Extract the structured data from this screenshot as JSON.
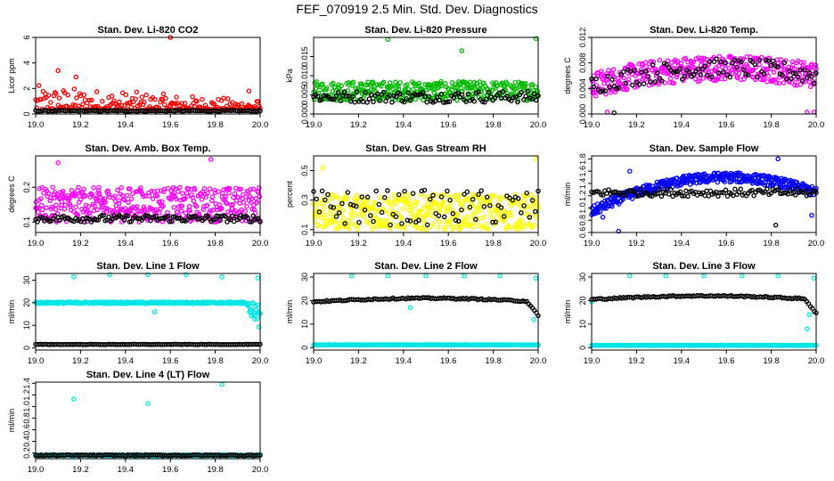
{
  "figure": {
    "title": "FEF_070919  2.5 Min. Std. Dev. Diagnostics"
  },
  "chart_data": [
    {
      "type": "scatter",
      "title": "Stan. Dev. Li-820 CO2",
      "xlabel": "",
      "ylabel": "Licor ppm",
      "xlim": [
        19.0,
        20.0
      ],
      "ylim": [
        0,
        6
      ],
      "xticks": [
        19.0,
        19.2,
        19.4,
        19.6,
        19.8,
        20.0
      ],
      "yticks": [
        0,
        2,
        4,
        6
      ],
      "series": [
        {
          "name": "primary",
          "color": "#ff0000",
          "pattern": "decay",
          "base": 0.35,
          "spread": 1.2,
          "count": 210,
          "outliers": [
            [
              19.6,
              6.0
            ],
            [
              19.1,
              3.4
            ],
            [
              19.18,
              2.9
            ],
            [
              19.95,
              1.8
            ]
          ]
        },
        {
          "name": "black",
          "color": "#000000",
          "pattern": "flat",
          "base": 0.25,
          "spread": 0.04,
          "count": 130,
          "outliers": []
        }
      ]
    },
    {
      "type": "scatter",
      "title": "Stan. Dev. Li-820 Pressure",
      "xlabel": "",
      "ylabel": "kPa",
      "xlim": [
        19.0,
        20.0
      ],
      "ylim": [
        0,
        0.02
      ],
      "xticks": [
        19.0,
        19.2,
        19.4,
        19.6,
        19.8,
        20.0
      ],
      "yticks": [
        0.0,
        0.005,
        0.01,
        0.015
      ],
      "series": [
        {
          "name": "primary",
          "color": "#00bb00",
          "pattern": "band",
          "base": 0.006,
          "spread": 0.0025,
          "count": 380,
          "outliers": [
            [
              19.33,
              0.0195
            ],
            [
              19.66,
              0.0165
            ],
            [
              19.99,
              0.0197
            ]
          ]
        },
        {
          "name": "black",
          "color": "#000000",
          "pattern": "band",
          "base": 0.0045,
          "spread": 0.0015,
          "count": 110,
          "outliers": []
        }
      ]
    },
    {
      "type": "scatter",
      "title": "Stan. Dev. Li-820 Temp.",
      "xlabel": "",
      "ylabel": "degrees C",
      "xlim": [
        19.0,
        20.0
      ],
      "ylim": [
        0,
        0.012
      ],
      "xticks": [
        19.0,
        19.2,
        19.4,
        19.6,
        19.8,
        20.0
      ],
      "yticks": [
        0.0,
        0.004,
        0.008,
        0.012
      ],
      "series": [
        {
          "name": "primary",
          "color": "#ff00ff",
          "pattern": "arch",
          "base": 0.006,
          "spread": 0.002,
          "count": 400,
          "outliers": [
            [
              19.07,
              0.0003
            ],
            [
              19.96,
              0.0003
            ],
            [
              19.99,
              0.0003
            ]
          ]
        },
        {
          "name": "black",
          "color": "#000000",
          "pattern": "arch",
          "base": 0.006,
          "spread": 0.0015,
          "count": 100,
          "outliers": [
            [
              19.1,
              0.0002
            ]
          ]
        }
      ]
    },
    {
      "type": "scatter",
      "title": "Stan. Dev. Amb. Box Temp.",
      "xlabel": "",
      "ylabel": "degrees C",
      "xlim": [
        19.0,
        20.0
      ],
      "ylim": [
        0.07,
        0.29
      ],
      "xticks": [
        19.0,
        19.2,
        19.4,
        19.6,
        19.8,
        20.0
      ],
      "yticks": [
        0.1,
        0.2
      ],
      "series": [
        {
          "name": "primary",
          "color": "#ff00ff",
          "pattern": "band",
          "base": 0.15,
          "spread": 0.05,
          "count": 420,
          "outliers": [
            [
              19.78,
              0.28
            ],
            [
              19.1,
              0.27
            ]
          ]
        },
        {
          "name": "black",
          "color": "#000000",
          "pattern": "band",
          "base": 0.11,
          "spread": 0.01,
          "count": 130,
          "outliers": []
        }
      ]
    },
    {
      "type": "scatter",
      "title": "Stan. Dev. Gas Stream RH",
      "xlabel": "",
      "ylabel": "percent",
      "xlim": [
        19.0,
        20.0
      ],
      "ylim": [
        0.08,
        0.6
      ],
      "xticks": [
        19.0,
        19.2,
        19.4,
        19.6,
        19.8,
        20.0
      ],
      "yticks": [
        0.1,
        0.3,
        0.5
      ],
      "series": [
        {
          "name": "primary",
          "color": "#ffff00",
          "pattern": "band",
          "base": 0.22,
          "spread": 0.12,
          "count": 420,
          "outliers": [
            [
              19.04,
              0.52
            ],
            [
              19.99,
              0.58
            ]
          ]
        },
        {
          "name": "black",
          "color": "#000000",
          "pattern": "band",
          "base": 0.25,
          "spread": 0.12,
          "count": 80,
          "outliers": []
        }
      ]
    },
    {
      "type": "scatter",
      "title": "Stan. Dev. Sample Flow",
      "xlabel": "",
      "ylabel": "ml/min",
      "xlim": [
        19.0,
        20.0
      ],
      "ylim": [
        0.6,
        1.85
      ],
      "xticks": [
        19.0,
        19.2,
        19.4,
        19.6,
        19.8,
        20.0
      ],
      "yticks": [
        0.6,
        0.8,
        1.0,
        1.2,
        1.4,
        1.6,
        1.8
      ],
      "series": [
        {
          "name": "primary",
          "color": "#0000ff",
          "pattern": "arch",
          "base": 1.25,
          "spread": 0.08,
          "count": 420,
          "outliers": [
            [
              19.83,
              1.8
            ],
            [
              19.17,
              1.6
            ],
            [
              19.05,
              0.85
            ],
            [
              19.12,
              0.62
            ],
            [
              19.98,
              0.88
            ]
          ]
        },
        {
          "name": "black",
          "color": "#000000",
          "pattern": "band",
          "base": 1.25,
          "spread": 0.06,
          "count": 120,
          "outliers": [
            [
              19.82,
              0.72
            ]
          ]
        }
      ]
    },
    {
      "type": "scatter",
      "title": "Stan. Dev. Line 1 Flow",
      "xlabel": "",
      "ylabel": "ml/min",
      "xlim": [
        19.0,
        20.0
      ],
      "ylim": [
        -1,
        33
      ],
      "xticks": [
        19.0,
        19.2,
        19.4,
        19.6,
        19.8,
        20.0
      ],
      "yticks": [
        0,
        10,
        20,
        30
      ],
      "series": [
        {
          "name": "primary",
          "color": "#00e5e5",
          "pattern": "dropend",
          "base": 20,
          "spread": 0.4,
          "count": 380,
          "outliers": [
            [
              19.17,
              31.5
            ],
            [
              19.33,
              32.5
            ],
            [
              19.5,
              32.5
            ],
            [
              19.67,
              32.5
            ],
            [
              19.83,
              31.5
            ],
            [
              19.99,
              31
            ],
            [
              19.53,
              16
            ]
          ]
        },
        {
          "name": "black",
          "color": "#000000",
          "pattern": "flat",
          "base": 1.5,
          "spread": 0.1,
          "count": 130,
          "outliers": []
        }
      ]
    },
    {
      "type": "scatter",
      "title": "Stan. Dev. Line 2 Flow",
      "xlabel": "",
      "ylabel": "ml/min",
      "xlim": [
        19.0,
        20.0
      ],
      "ylim": [
        -1,
        31.5
      ],
      "xticks": [
        19.0,
        19.2,
        19.4,
        19.6,
        19.8,
        20.0
      ],
      "yticks": [
        0,
        10,
        20,
        30
      ],
      "series": [
        {
          "name": "primary",
          "color": "#00e5e5",
          "pattern": "flat",
          "base": 1.2,
          "spread": 0.1,
          "count": 380,
          "outliers": [
            [
              19.17,
              30.5
            ],
            [
              19.33,
              30.5
            ],
            [
              19.5,
              30.5
            ],
            [
              19.67,
              30.5
            ],
            [
              19.83,
              30.5
            ],
            [
              19.99,
              29.5
            ],
            [
              19.43,
              17
            ],
            [
              19.98,
              12
            ]
          ]
        },
        {
          "name": "black",
          "color": "#000000",
          "pattern": "arcdrop",
          "base": 19.5,
          "spread": 0.3,
          "count": 120,
          "outliers": []
        }
      ]
    },
    {
      "type": "scatter",
      "title": "Stan. Dev. Line 3 Flow",
      "xlabel": "",
      "ylabel": "ml/min",
      "xlim": [
        19.0,
        20.0
      ],
      "ylim": [
        -1,
        31.5
      ],
      "xticks": [
        19.0,
        19.2,
        19.4,
        19.6,
        19.8,
        20.0
      ],
      "yticks": [
        0,
        10,
        20,
        30
      ],
      "series": [
        {
          "name": "primary",
          "color": "#00e5e5",
          "pattern": "flat",
          "base": 1.0,
          "spread": 0.1,
          "count": 380,
          "outliers": [
            [
              19.17,
              30.5
            ],
            [
              19.33,
              30.5
            ],
            [
              19.5,
              30.5
            ],
            [
              19.67,
              30.5
            ],
            [
              19.83,
              30.5
            ],
            [
              19.99,
              29.5
            ],
            [
              19.0,
              19.5
            ],
            [
              19.96,
              8
            ],
            [
              19.97,
              14
            ]
          ]
        },
        {
          "name": "black",
          "color": "#000000",
          "pattern": "arcdrop",
          "base": 20.5,
          "spread": 0.3,
          "count": 120,
          "outliers": []
        }
      ]
    },
    {
      "type": "scatter",
      "title": "Stan. Dev. Line 4 (LT) Flow",
      "xlabel": "",
      "ylabel": "ml/min",
      "xlim": [
        19.0,
        20.0
      ],
      "ylim": [
        0.1,
        1.42
      ],
      "xticks": [
        19.0,
        19.2,
        19.4,
        19.6,
        19.8,
        20.0
      ],
      "yticks": [
        0.2,
        0.4,
        0.6,
        0.8,
        1.0,
        1.2,
        1.4
      ],
      "series": [
        {
          "name": "primary",
          "color": "#00e5e5",
          "pattern": "flat",
          "base": 0.16,
          "spread": 0.01,
          "count": 380,
          "outliers": [
            [
              19.17,
              1.13
            ],
            [
              19.5,
              1.05
            ],
            [
              19.83,
              1.38
            ]
          ]
        },
        {
          "name": "black",
          "color": "#000000",
          "pattern": "flat",
          "base": 0.16,
          "spread": 0.01,
          "count": 130,
          "outliers": []
        }
      ]
    }
  ]
}
